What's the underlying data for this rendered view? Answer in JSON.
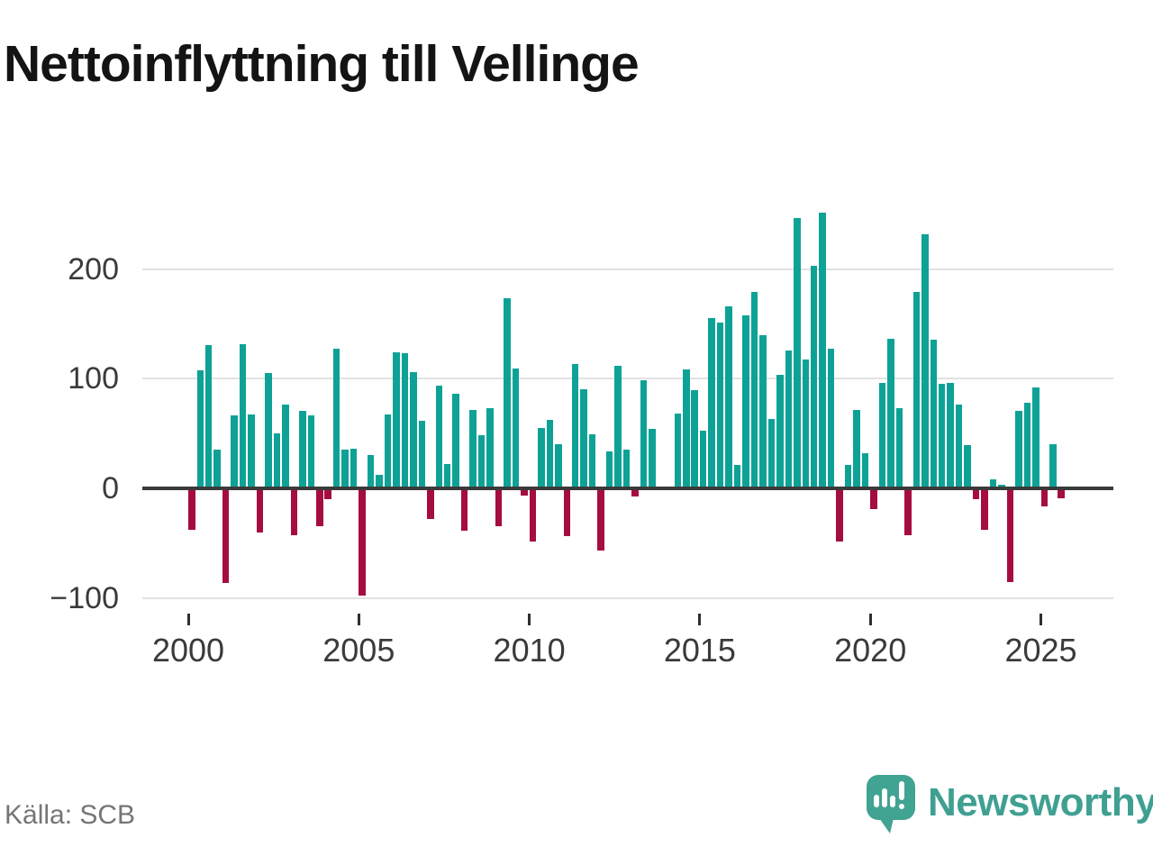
{
  "title": "Nettoinflyttning till Vellinge",
  "source": "Källa: SCB",
  "branding": {
    "wordmark": "Newsworthy"
  },
  "y_axis": {
    "tick_labels": [
      "200",
      "100",
      "0",
      "−100"
    ]
  },
  "x_axis": {
    "tick_labels": [
      "2000",
      "2005",
      "2010",
      "2015",
      "2020",
      "2025"
    ]
  },
  "colors": {
    "positive": "#0ea296",
    "negative": "#a50d3f",
    "zero_line": "#3a3a3a",
    "gridline": "#e2e2e2",
    "title_text": "#141414",
    "axis_text": "#3a3a3a",
    "source_text": "#757575",
    "brand_teal": "#41a392"
  },
  "chart_data": {
    "type": "bar",
    "title": "Nettoinflyttning till Vellinge",
    "frequency": "quarterly",
    "start": "2000-Q1",
    "end": "2025-Q3",
    "values": [
      -36,
      109,
      132,
      37,
      -85,
      68,
      133,
      69,
      -39,
      107,
      52,
      78,
      -41,
      72,
      68,
      -33,
      -8,
      129,
      37,
      38,
      -96,
      32,
      14,
      69,
      126,
      125,
      108,
      63,
      -26,
      95,
      24,
      88,
      -37,
      73,
      50,
      75,
      -33,
      175,
      111,
      -5,
      -47,
      57,
      64,
      42,
      -42,
      115,
      92,
      51,
      -55,
      35,
      113,
      37,
      -6,
      100,
      56,
      3,
      0,
      70,
      110,
      91,
      54,
      157,
      153,
      168,
      23,
      159,
      181,
      141,
      65,
      105,
      127,
      248,
      119,
      205,
      253,
      129,
      -47,
      23,
      73,
      34,
      -17,
      98,
      138,
      75,
      -41,
      181,
      233,
      137,
      97,
      98,
      78,
      41,
      -8,
      -36,
      10,
      5,
      -84,
      72,
      80,
      94,
      -15,
      42,
      -7
    ],
    "yticks": [
      200,
      100,
      0,
      -100
    ],
    "xticks": [
      2000,
      2005,
      2010,
      2015,
      2020,
      2025
    ],
    "ylim": [
      -110,
      260
    ],
    "grid": "horizontal",
    "legend": "none",
    "positive_color": "#0ea296",
    "negative_color": "#a50d3f",
    "source": "Källa: SCB"
  }
}
